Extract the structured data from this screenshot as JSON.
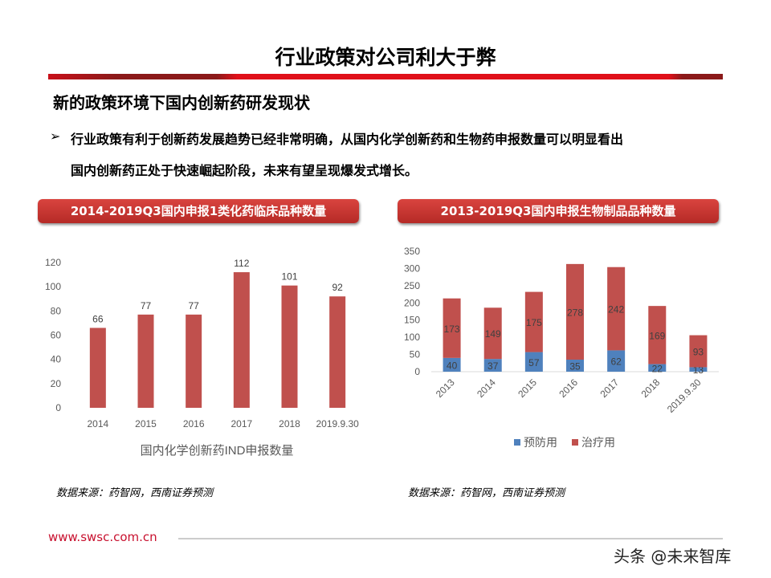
{
  "title": "行业政策对公司利大于弊",
  "subtitle": "新的政策环境下国内创新药研发现状",
  "bullet_icon": "arrow-right-icon",
  "bullet_lines": [
    "行业政策有利于创新药发展趋势已经非常明确，从国内化学创新药和生物药申报数量可以明显看出",
    "国内创新药正处于快速崛起阶段，未来有望呈现爆发式增长。"
  ],
  "accent_color": "#c0392b",
  "chart_data": [
    {
      "type": "bar",
      "title": "2014-2019Q3国内申报1类化药临床品种数量",
      "categories": [
        "2014",
        "2015",
        "2016",
        "2017",
        "2018",
        "2019.9.30"
      ],
      "values": [
        66,
        77,
        77,
        112,
        101,
        92
      ],
      "ylim": [
        0,
        120
      ],
      "yticks": [
        0,
        20,
        40,
        60,
        80,
        100,
        120
      ],
      "xlabel": "国内化学创新药IND申报数量",
      "color": "#c0504d",
      "grid": false,
      "source": "数据来源：药智网，西南证券预测"
    },
    {
      "type": "bar",
      "stacked": true,
      "title": "2013-2019Q3国内申报生物制品品种数量",
      "categories": [
        "2013",
        "2014",
        "2015",
        "2016",
        "2017",
        "2018",
        "2019.9.30"
      ],
      "series": [
        {
          "name": "预防用",
          "values": [
            40,
            37,
            57,
            35,
            62,
            22,
            13
          ],
          "color": "#4f81bd"
        },
        {
          "name": "治疗用",
          "values": [
            173,
            149,
            175,
            278,
            242,
            169,
            93
          ],
          "color": "#c0504d"
        }
      ],
      "ylim": [
        0,
        350
      ],
      "yticks": [
        0,
        50,
        100,
        150,
        200,
        250,
        300,
        350
      ],
      "legend": "bottom",
      "grid": false,
      "source": "数据来源：药智网，西南证券预测"
    }
  ],
  "footer": {
    "site": "www.swsc.com.cn",
    "watermark": "头条 @未来智库"
  }
}
